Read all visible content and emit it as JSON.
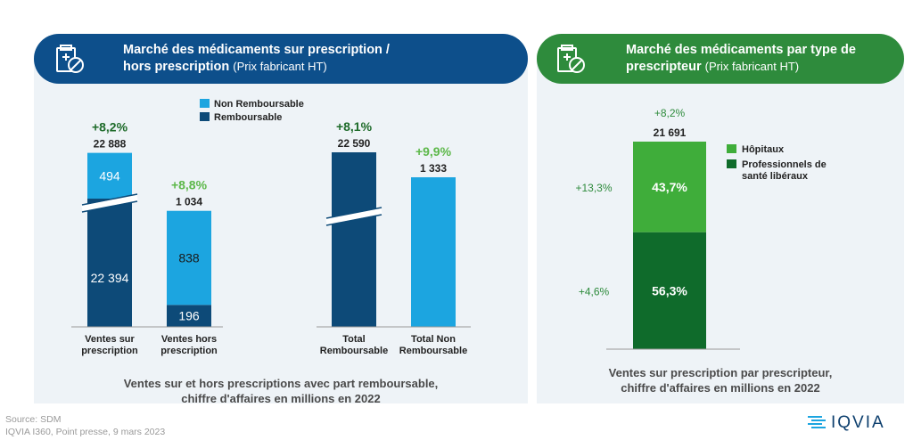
{
  "left_panel": {
    "title_line1": "Marché des médicaments sur prescription /",
    "title_line2": "hors prescription",
    "title_sub": "(Prix fabricant HT)",
    "caption_line1": "Ventes sur et hors prescriptions avec part remboursable,",
    "caption_line2": "chiffre d'affaires en millions en 2022",
    "icon": "prescription-pill-icon"
  },
  "right_panel": {
    "title_line1": "Marché des médicaments par type de",
    "title_line2": "prescripteur",
    "title_sub": "(Prix fabricant HT)",
    "caption_line1": "Ventes sur prescription par prescripteur,",
    "caption_line2": "chiffre d'affaires en millions en 2022",
    "icon": "prescription-pill-icon"
  },
  "footer": {
    "source": "Source: SDM",
    "reference": "IQVIA I360, Point presse, 9 mars 2023",
    "logo_text": "IQVIA"
  },
  "colors": {
    "header_left": "#0d4f8b",
    "header_right": "#2e8b3c",
    "non_remboursable": "#1ca5e0",
    "remboursable": "#0d4a78",
    "hopitaux": "#3fad3a",
    "professionnels": "#0f6b2b",
    "growth_dark": "#1e6b2a",
    "growth_light": "#5db84a"
  },
  "chart_data": [
    {
      "type": "bar",
      "stacked": true,
      "legend": [
        "Non Remboursable",
        "Remboursable"
      ],
      "legend_placement": "top-center",
      "categories": [
        "Ventes sur|prescription",
        "Ventes hors|prescription"
      ],
      "category_lines": [
        [
          "Ventes sur",
          "prescription"
        ],
        [
          "Ventes hors",
          "prescription"
        ]
      ],
      "series": [
        {
          "name": "Remboursable",
          "values": [
            22394,
            196
          ]
        },
        {
          "name": "Non Remboursable",
          "values": [
            494,
            838
          ]
        }
      ],
      "value_labels": [
        [
          "22 394",
          "494"
        ],
        [
          "196",
          "838"
        ]
      ],
      "totals": [
        22888,
        1034
      ],
      "total_labels": [
        "22 888",
        "1 034"
      ],
      "growth": [
        "+8,2%",
        "+8,8%"
      ],
      "axis_break": [
        true,
        false
      ]
    },
    {
      "type": "bar",
      "stacked": false,
      "categories": [
        "Total|Remboursable",
        "Total Non|Remboursable"
      ],
      "category_lines": [
        [
          "Total",
          "Remboursable"
        ],
        [
          "Total Non",
          "Remboursable"
        ]
      ],
      "values": [
        22590,
        1333
      ],
      "value_labels": [
        "22 590",
        "1 333"
      ],
      "growth": [
        "+8,1%",
        "+9,9%"
      ],
      "axis_break": [
        true,
        false
      ]
    },
    {
      "type": "bar",
      "stacked": true,
      "legend": [
        "Hôpitaux",
        "Professionnels de santé libéraux"
      ],
      "legend_lines": [
        [
          "Hôpitaux"
        ],
        [
          "Professionnels de",
          "santé libéraux"
        ]
      ],
      "legend_placement": "right",
      "total": 21691,
      "total_label": "21 691",
      "total_growth": "+8,2%",
      "series": [
        {
          "name": "Professionnels de santé libéraux",
          "share": 56.3,
          "label": "56,3%",
          "growth": "+4,6%"
        },
        {
          "name": "Hôpitaux",
          "share": 43.7,
          "label": "43,7%",
          "growth": "+13,3%"
        }
      ]
    }
  ]
}
